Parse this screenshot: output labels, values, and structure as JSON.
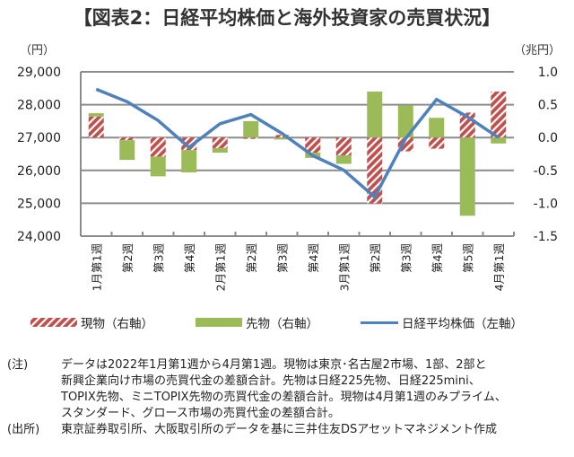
{
  "title": "【図表2：日経平均株価と海外投資家の売買状況】",
  "colors": {
    "spot": "#C0504D",
    "futures": "#9BBB59",
    "nikkei": "#4F81BD",
    "grid": "#8C8C8C"
  },
  "chart_data": {
    "type": "bar",
    "title": "【図表2：日経平均株価と海外投資家の売買状況】",
    "categories": [
      "1月第1週",
      "第2週",
      "第3週",
      "第4週",
      "2月第1週",
      "第2週",
      "第3週",
      "第4週",
      "3月第1週",
      "第2週",
      "第3週",
      "第4週",
      "第5週",
      "4月第1週"
    ],
    "left_axis": {
      "unit_label": "（円）",
      "range": [
        24000,
        29000
      ],
      "ticks": [
        "29,000",
        "28,000",
        "27,000",
        "26,000",
        "25,000",
        "24,000"
      ],
      "tick_values": [
        29000,
        28000,
        27000,
        26000,
        25000,
        24000
      ]
    },
    "right_axis": {
      "unit_label": "（兆円）",
      "range": [
        -1.5,
        1.0
      ],
      "ticks": [
        "1.0",
        "0.5",
        "0.0",
        "-0.5",
        "-1.0",
        "-1.5"
      ],
      "tick_values": [
        1.0,
        0.5,
        0.0,
        -0.5,
        -1.0,
        -1.5
      ]
    },
    "grid": true,
    "series": [
      {
        "name": "現物（右軸）",
        "type": "stacked-bar",
        "axis": "right",
        "values": [
          0.32,
          -0.04,
          -0.29,
          -0.19,
          -0.16,
          -0.02,
          0.04,
          -0.23,
          -0.27,
          -1.0,
          -0.21,
          -0.17,
          0.38,
          0.7
        ]
      },
      {
        "name": "先物（右軸）",
        "type": "stacked-bar",
        "axis": "right",
        "values": [
          0.05,
          -0.3,
          -0.3,
          -0.34,
          -0.07,
          0.25,
          -0.03,
          -0.08,
          -0.13,
          0.7,
          0.49,
          0.3,
          -1.19,
          -0.09
        ]
      },
      {
        "name": "日経平均株価（左軸）",
        "type": "line",
        "axis": "left",
        "values": [
          28470,
          28090,
          27520,
          26700,
          27420,
          27700,
          27130,
          26450,
          26010,
          25190,
          26970,
          28160,
          27630,
          27000
        ]
      }
    ],
    "legend_position": "bottom"
  },
  "legend": {
    "spot": "現物（右軸）",
    "futures": "先物（右軸）",
    "nikkei": "日経平均株価（左軸）"
  },
  "notes": [
    {
      "label": "(注)",
      "lines": [
        "データは2022年1月第1週から4月第1週。現物は東京･名古屋2市場、1部、2部と",
        "新興企業向け市場の売買代金の差額合計。先物は日経225先物、日経225mini、",
        "TOPIX先物、ミニTOPIX先物の売買代金の差額合計。現物は4月第1週のみプライム、",
        "スタンダード、グロース市場の売買代金の差額合計。"
      ]
    },
    {
      "label": "(出所)",
      "lines": [
        "東京証券取引所、大阪取引所のデータを基に三井住友DSアセットマネジメント作成"
      ]
    }
  ]
}
